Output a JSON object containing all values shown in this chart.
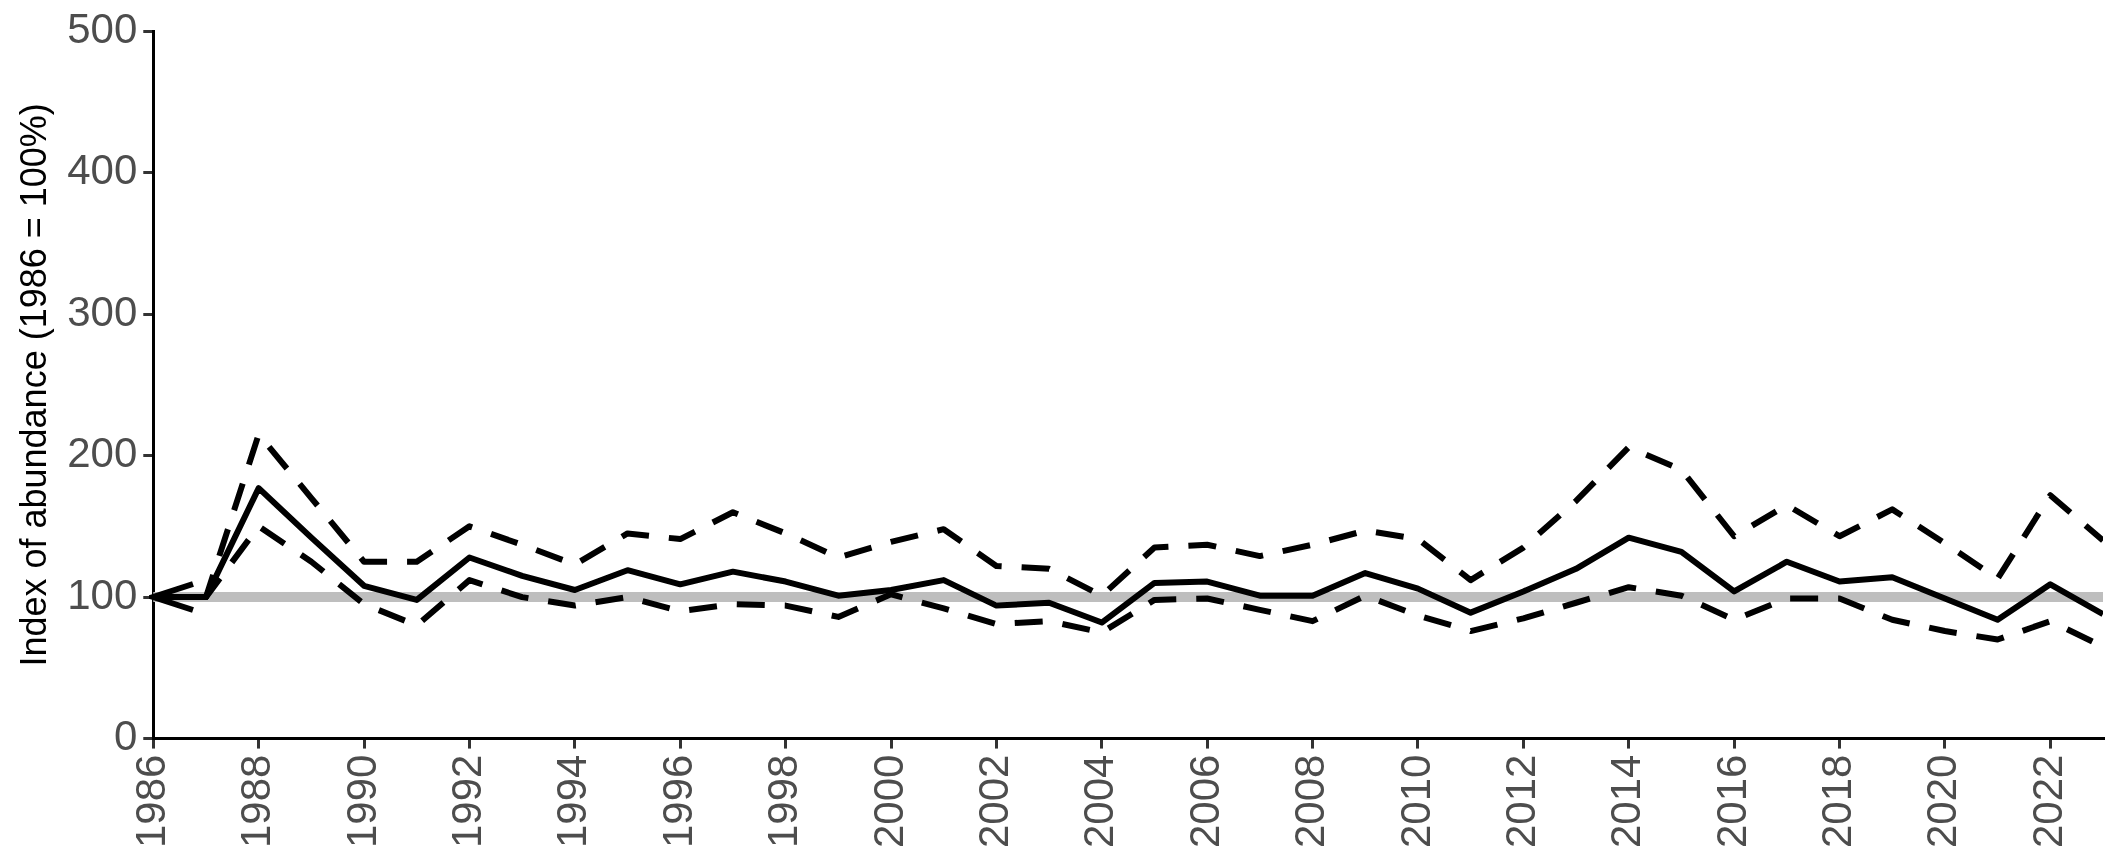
{
  "chart_data": {
    "type": "line",
    "ylabel": "Index of abundance (1986 = 100%)",
    "x": [
      1986,
      1987,
      1988,
      1989,
      1990,
      1991,
      1992,
      1993,
      1994,
      1995,
      1996,
      1997,
      1998,
      1999,
      2000,
      2001,
      2002,
      2003,
      2004,
      2005,
      2006,
      2007,
      2008,
      2009,
      2010,
      2011,
      2012,
      2013,
      2014,
      2015,
      2016,
      2017,
      2018,
      2019,
      2020,
      2021,
      2022,
      2023
    ],
    "series": [
      {
        "color": "#000000",
        "line_style": "dashed",
        "values": [
          100,
          100,
          215,
          170,
          125,
          125,
          150,
          137,
          123,
          145,
          141,
          160,
          145,
          128,
          139,
          148,
          122,
          120,
          101,
          135,
          137,
          129,
          137,
          147,
          141,
          112,
          135,
          168,
          206,
          190,
          143,
          165,
          143,
          162,
          138,
          113,
          172,
          140
        ]
      },
      {
        "color": "#000000",
        "line_style": "dashed",
        "values": [
          100,
          100,
          150,
          125,
          95,
          80,
          112,
          100,
          94,
          100,
          90,
          95,
          94,
          86,
          102,
          92,
          81,
          83,
          75,
          98,
          99,
          91,
          83,
          101,
          87,
          76,
          85,
          96,
          107,
          101,
          84,
          99,
          99,
          84,
          76,
          70,
          83,
          65
        ]
      },
      {
        "color": "#000000",
        "line_style": "solid",
        "values": [
          100,
          100,
          177,
          142,
          108,
          98,
          128,
          115,
          105,
          119,
          109,
          118,
          111,
          101,
          105,
          112,
          94,
          96,
          82,
          110,
          111,
          101,
          101,
          117,
          106,
          89,
          104,
          120,
          142,
          132,
          104,
          125,
          111,
          114,
          99,
          84,
          109,
          88
        ]
      }
    ],
    "xlim": [
      1986,
      2023
    ],
    "xticks": [
      1986,
      1988,
      1990,
      1992,
      1994,
      1996,
      1998,
      2000,
      2002,
      2004,
      2006,
      2008,
      2010,
      2012,
      2014,
      2016,
      2018,
      2020,
      2022
    ],
    "ylim": [
      0,
      500
    ],
    "yticks": [
      0,
      100,
      200,
      300,
      400,
      500
    ],
    "ref_lines": [
      {
        "axis": "y",
        "value": 100,
        "color": "#bebebe"
      }
    ],
    "grid": false,
    "legend": false,
    "marker": "none"
  }
}
